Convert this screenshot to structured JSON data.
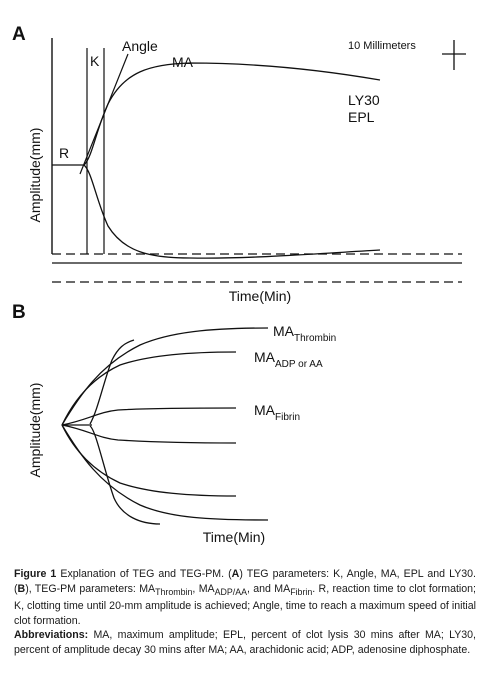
{
  "panel_a": {
    "label": "A",
    "ylabel": "Amplitude(mm)",
    "xlabel": "Time(Min)",
    "r_label": "R",
    "k_label": "K",
    "angle_label": "Angle",
    "ma_label": "MA",
    "ly30_label": "LY30",
    "epl_label": "EPL",
    "scale_label": "10 Millimeters"
  },
  "panel_b": {
    "label": "B",
    "ylabel": "Amplitude(mm)",
    "xlabel": "Time(Min)",
    "ma_main": "MA",
    "thrombin_sub": "Thrombin",
    "adp_sub": "ADP or AA",
    "fibrin_sub": "Fibrin"
  },
  "caption": {
    "figure_label": "Figure 1",
    "text1": "Explanation of TEG and TEG-PM. (",
    "a_ref": "A",
    "text2": ") TEG parameters: K, Angle, MA, EPL and LY30. (",
    "b_ref": "B",
    "text3": "), TEG-PM parameters: MA",
    "sub_thrombin": "Thrombin",
    "sep1": ", MA",
    "sub_adp": "ADP/AA",
    "sep2": ", and MA",
    "sub_fibrin": "Fibrin",
    "text4": ". R, reaction time to clot formation; K, clotting time until 20-mm amplitude is achieved; Angle, time to reach a maximum speed of initial clot formation.",
    "abbr_label": "Abbreviations:",
    "abbr_text": "MA, maximum amplitude; EPL, percent of clot lysis 30 mins after MA; LY30, percent of amplitude decay 30 mins after MA; AA, arachidonic acid; ADP, adenosine diphosphate."
  }
}
